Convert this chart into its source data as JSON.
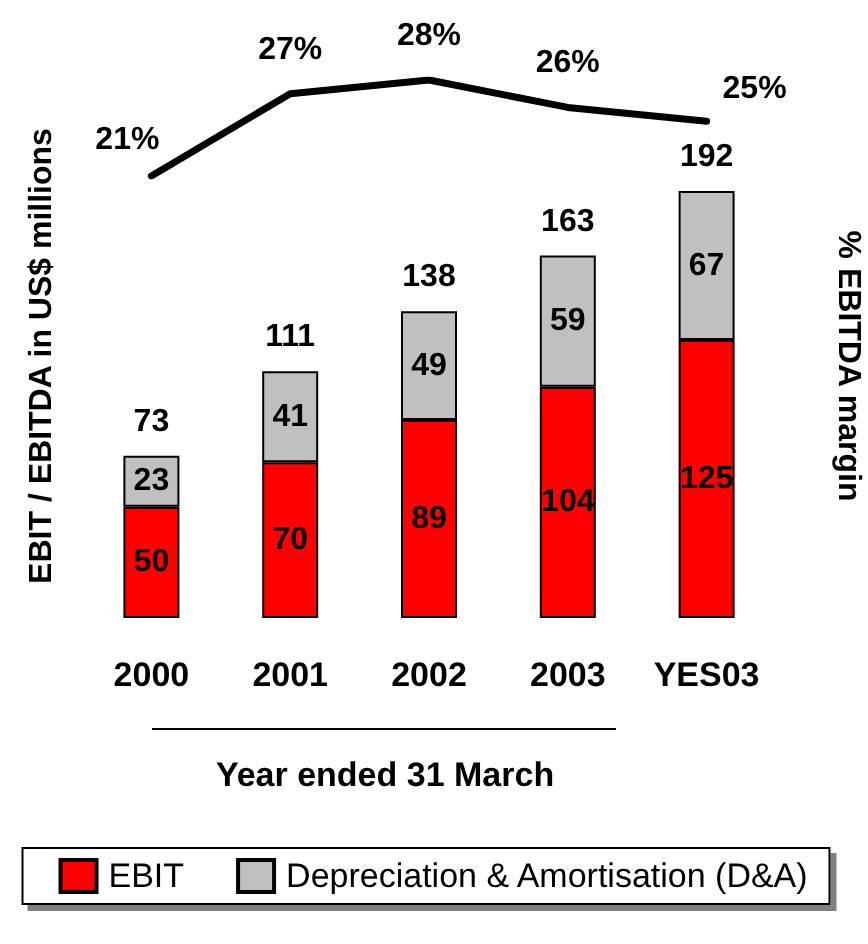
{
  "chart_data": [
    {
      "type": "line",
      "categories": [
        null,
        null,
        null,
        null,
        null
      ],
      "values": [
        21,
        27,
        28,
        26,
        25
      ],
      "value_labels": [
        "21%",
        "27%",
        "28%",
        "26%",
        "25%"
      ],
      "color": "#000000",
      "ylabel": "% EBITDA margin",
      "tick_labels": false,
      "marker": "none",
      "line_style": "solid"
    },
    {
      "type": "bar",
      "stacked": true,
      "categories": [
        "2000",
        "2001",
        "2002",
        "2003",
        "YES03"
      ],
      "series": [
        {
          "name": "EBIT",
          "color": "#ff0000",
          "values": [
            50,
            70,
            89,
            104,
            125
          ]
        },
        {
          "name": "Depreciation & Amortisation (D&A)",
          "color": "#c0c0c0",
          "values": [
            23,
            41,
            49,
            59,
            67
          ]
        }
      ],
      "totals": [
        "73",
        "111",
        "138",
        "163",
        "192"
      ],
      "data_labels": true,
      "xlabel": "Year ended 31 March",
      "ylabel": "EBIT / EBITDA in US$ millions",
      "legend": "bottom",
      "grid": false,
      "tick_labels": "x"
    }
  ]
}
